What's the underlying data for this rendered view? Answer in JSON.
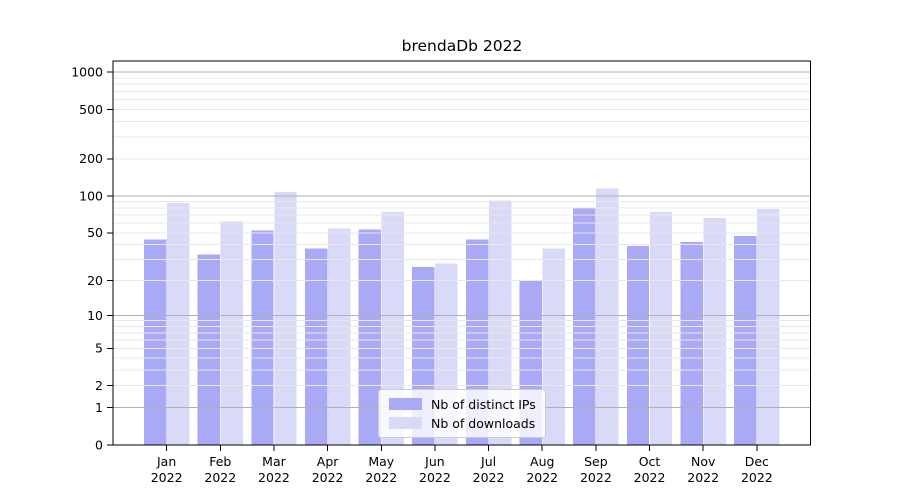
{
  "chart_data": {
    "type": "bar",
    "title": "brendaDb 2022",
    "categories": [
      "Jan",
      "Feb",
      "Mar",
      "Apr",
      "May",
      "Jun",
      "Jul",
      "Aug",
      "Sep",
      "Oct",
      "Nov",
      "Dec"
    ],
    "year_label": "2022",
    "series": [
      {
        "name": "Nb of distinct IPs",
        "color": "#a9a9f5",
        "values": [
          44,
          33,
          52,
          37,
          53,
          26,
          44,
          20,
          80,
          39,
          42,
          47
        ]
      },
      {
        "name": "Nb of downloads",
        "color": "#d9d9f8",
        "values": [
          88,
          62,
          108,
          54,
          74,
          28,
          92,
          37,
          115,
          74,
          66,
          78
        ]
      }
    ],
    "y_ticks": [
      0,
      1,
      2,
      5,
      10,
      20,
      50,
      100,
      200,
      500,
      1000
    ],
    "scale": "log1p",
    "ylim": [
      0,
      1230
    ],
    "grid": {
      "major_at": [
        1,
        10,
        100,
        1000
      ],
      "major_color": "#b0b0b0",
      "minor_color": "#e8e8e8"
    },
    "axis_color": "#000000",
    "legend_position": "lower-center"
  }
}
